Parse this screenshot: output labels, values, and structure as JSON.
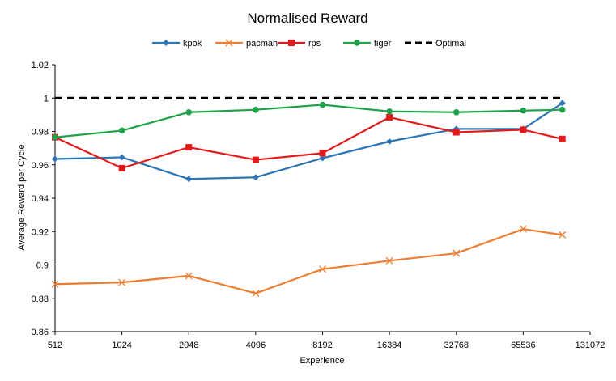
{
  "chart_data": {
    "type": "line",
    "title": "Normalised  Reward",
    "xlabel": "Experience",
    "ylabel": "Average Reward per Cycle",
    "ylim": [
      0.86,
      1.02
    ],
    "yticks": [
      "0.86",
      "0.88",
      "0.9",
      "0.92",
      "0.94",
      "0.96",
      "0.98",
      "1",
      "1.02"
    ],
    "xticks": [
      "512",
      "1024",
      "2048",
      "4096",
      "8192",
      "16384",
      "32768",
      "65536",
      "131072"
    ],
    "x": [
      512,
      1024,
      2048,
      4096,
      8192,
      16384,
      32768,
      65536,
      98304
    ],
    "grid": false,
    "legend_position": "top",
    "series": [
      {
        "name": "kpok",
        "color": "#2E75B6",
        "marker": "diamond",
        "values": [
          0.9635,
          0.9645,
          0.9515,
          0.9525,
          0.964,
          0.974,
          0.9815,
          0.9815,
          0.997
        ]
      },
      {
        "name": "pacman",
        "color": "#ED7D31",
        "marker": "x",
        "values": [
          0.8885,
          0.8895,
          0.8935,
          0.883,
          0.8975,
          0.9025,
          0.907,
          0.9215,
          0.918
        ]
      },
      {
        "name": "rps",
        "color": "#E31A1C",
        "marker": "square",
        "values": [
          0.9765,
          0.958,
          0.9705,
          0.963,
          0.967,
          0.9885,
          0.9795,
          0.981,
          0.9755
        ]
      },
      {
        "name": "tiger",
        "color": "#1FA24A",
        "marker": "circle",
        "values": [
          0.9765,
          0.9805,
          0.9915,
          0.993,
          0.996,
          0.992,
          0.9915,
          0.9925,
          0.993
        ]
      }
    ],
    "reference_line": {
      "name": "Optimal",
      "value": 1.0,
      "color": "#000000",
      "style": "dashed"
    }
  }
}
